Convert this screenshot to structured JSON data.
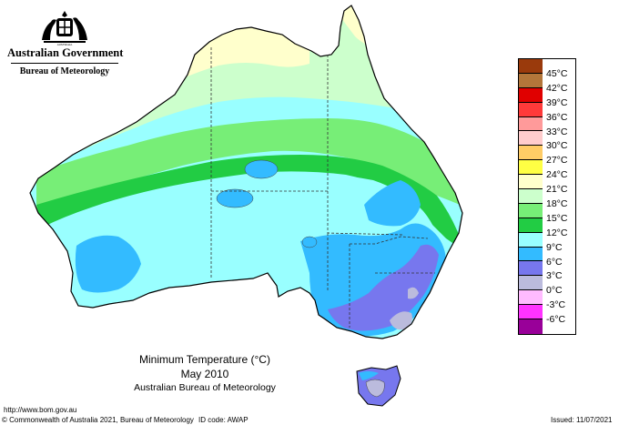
{
  "header": {
    "government": "Australian Government",
    "bureau": "Bureau of Meteorology"
  },
  "icons": {
    "crest": "coat-of-arms-icon"
  },
  "caption": {
    "title": "Minimum Temperature (°C)",
    "period": "May 2010",
    "source": "Australian Bureau of Meteorology"
  },
  "legend": [
    {
      "label": "45°C",
      "color": "#9a3a0c"
    },
    {
      "label": "42°C",
      "color": "#b3763a"
    },
    {
      "label": "39°C",
      "color": "#e00000"
    },
    {
      "label": "36°C",
      "color": "#ff3a3a"
    },
    {
      "label": "33°C",
      "color": "#ff9a9a"
    },
    {
      "label": "30°C",
      "color": "#ffcccc"
    },
    {
      "label": "27°C",
      "color": "#ffcc66"
    },
    {
      "label": "24°C",
      "color": "#ffff44"
    },
    {
      "label": "21°C",
      "color": "#ffffcc"
    },
    {
      "label": "18°C",
      "color": "#ccffcc"
    },
    {
      "label": "15°C",
      "color": "#77ee77"
    },
    {
      "label": "12°C",
      "color": "#22cc44"
    },
    {
      "label": "9°C",
      "color": "#99ffff"
    },
    {
      "label": "6°C",
      "color": "#33bbff"
    },
    {
      "label": "3°C",
      "color": "#7777ee"
    },
    {
      "label": "0°C",
      "color": "#bbbbdd"
    },
    {
      "label": "-3°C",
      "color": "#ffbbff"
    },
    {
      "label": "-6°C",
      "color": "#ff33ff"
    },
    {
      "label": "",
      "color": "#990099"
    }
  ],
  "footer": {
    "url": "http://www.bom.gov.au",
    "copyright": "© Commonwealth of Australia 2021, Bureau of Meteorology",
    "id_code": "ID code: AWAP",
    "issued": "Issued: 11/07/2021"
  }
}
